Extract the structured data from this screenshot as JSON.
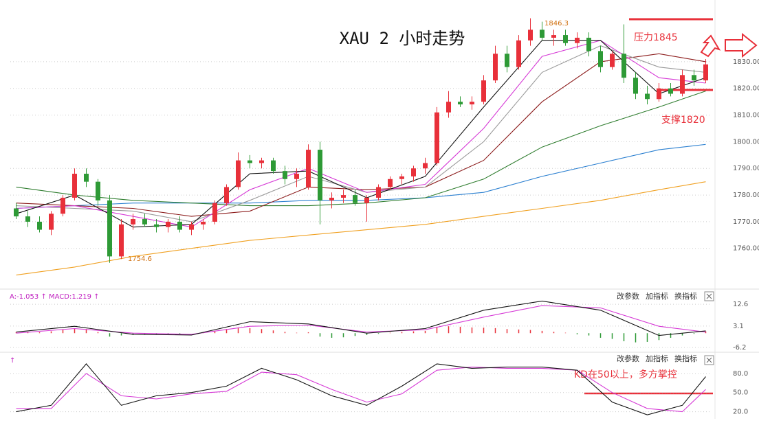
{
  "title": "XAU 2 小时走势",
  "chart_data": [
    {
      "type": "candlestick",
      "ylim": [
        1745,
        1848
      ],
      "yticks": [
        {
          "value": 1760,
          "label": "1760.00"
        },
        {
          "value": 1770,
          "label": "1770.00"
        },
        {
          "value": 1780,
          "label": "1780.00"
        },
        {
          "value": 1790,
          "label": "1790.00"
        },
        {
          "value": 1800,
          "label": "1800.00"
        },
        {
          "value": 1810,
          "label": "1810.00"
        },
        {
          "value": 1820,
          "label": "1820.00"
        },
        {
          "value": 1830,
          "label": "1830.00"
        }
      ],
      "grid": true,
      "up_color": "#e8303a",
      "down_color": "#2e9a36",
      "ohlc": [
        [
          1775,
          1777,
          1771,
          1772
        ],
        [
          1772,
          1774,
          1768,
          1770
        ],
        [
          1770,
          1772,
          1766,
          1767
        ],
        [
          1767,
          1774,
          1765,
          1773
        ],
        [
          1773,
          1780,
          1772,
          1779
        ],
        [
          1779,
          1790,
          1778,
          1788
        ],
        [
          1788,
          1790,
          1783,
          1785
        ],
        [
          1785,
          1786,
          1776,
          1778
        ],
        [
          1778,
          1780,
          1754.6,
          1757
        ],
        [
          1757,
          1771,
          1756,
          1769
        ],
        [
          1769,
          1773,
          1767,
          1771
        ],
        [
          1771,
          1773,
          1768,
          1769
        ],
        [
          1769,
          1771,
          1766,
          1768
        ],
        [
          1768,
          1771,
          1766,
          1770
        ],
        [
          1770,
          1772,
          1766,
          1767
        ],
        [
          1767,
          1770,
          1765,
          1769
        ],
        [
          1769,
          1771,
          1767,
          1770
        ],
        [
          1770,
          1778,
          1769,
          1777
        ],
        [
          1777,
          1784,
          1776,
          1783
        ],
        [
          1783,
          1796,
          1782,
          1793
        ],
        [
          1793,
          1795,
          1790,
          1792
        ],
        [
          1792,
          1794,
          1790,
          1793
        ],
        [
          1793,
          1794,
          1788,
          1789
        ],
        [
          1789,
          1791,
          1784,
          1786
        ],
        [
          1786,
          1790,
          1783,
          1788
        ],
        [
          1783,
          1799,
          1782,
          1797
        ],
        [
          1797,
          1800,
          1769,
          1778
        ],
        [
          1778,
          1781,
          1775,
          1779
        ],
        [
          1779,
          1782,
          1777,
          1780
        ],
        [
          1780,
          1782,
          1776,
          1777
        ],
        [
          1777,
          1780,
          1770,
          1779
        ],
        [
          1779,
          1784,
          1778,
          1783
        ],
        [
          1783,
          1787,
          1782,
          1786
        ],
        [
          1786,
          1788,
          1784,
          1787
        ],
        [
          1787,
          1791,
          1785,
          1790
        ],
        [
          1790,
          1794,
          1788,
          1792
        ],
        [
          1792,
          1813,
          1791,
          1811
        ],
        [
          1811,
          1819,
          1809,
          1815
        ],
        [
          1815,
          1817,
          1813,
          1814
        ],
        [
          1814,
          1817,
          1812,
          1815
        ],
        [
          1815,
          1825,
          1814,
          1823
        ],
        [
          1823,
          1836,
          1822,
          1833
        ],
        [
          1833,
          1836,
          1826,
          1828
        ],
        [
          1828,
          1840,
          1827,
          1838
        ],
        [
          1838,
          1846.3,
          1836,
          1842
        ],
        [
          1842,
          1845,
          1838,
          1839
        ],
        [
          1839,
          1842,
          1836,
          1840
        ],
        [
          1840,
          1842,
          1836,
          1837
        ],
        [
          1837,
          1841,
          1835,
          1839
        ],
        [
          1839,
          1841,
          1832,
          1834
        ],
        [
          1834,
          1836,
          1826,
          1828
        ],
        [
          1828,
          1834,
          1827,
          1833
        ],
        [
          1833,
          1844,
          1822,
          1824
        ],
        [
          1824,
          1826,
          1816,
          1818
        ],
        [
          1818,
          1821,
          1814,
          1816
        ],
        [
          1816,
          1822,
          1815,
          1820
        ],
        [
          1820,
          1822,
          1817,
          1818
        ],
        [
          1818,
          1827,
          1817,
          1825
        ],
        [
          1825,
          1827,
          1821,
          1823
        ],
        [
          1823,
          1831,
          1822,
          1829
        ]
      ],
      "series": [
        {
          "color": "#f0a020",
          "x": [
            0,
            5,
            10,
            15,
            20,
            25,
            30,
            35,
            40,
            45,
            50,
            55,
            59
          ],
          "values": [
            1750,
            1753,
            1757,
            1760,
            1763,
            1765,
            1767,
            1769,
            1772,
            1775,
            1778,
            1782,
            1785
          ]
        },
        {
          "color": "#2a7fd0",
          "x": [
            0,
            5,
            10,
            15,
            20,
            25,
            30,
            35,
            40,
            45,
            50,
            55,
            59
          ],
          "values": [
            1775,
            1776,
            1777,
            1777,
            1777,
            1778,
            1778,
            1779,
            1781,
            1787,
            1792,
            1797,
            1799
          ]
        },
        {
          "color": "#2f7d2f",
          "x": [
            0,
            5,
            10,
            15,
            20,
            25,
            30,
            35,
            40,
            45,
            50,
            55,
            59
          ],
          "values": [
            1783,
            1780,
            1778,
            1777,
            1776,
            1776,
            1777,
            1779,
            1786,
            1798,
            1806,
            1813,
            1819
          ]
        },
        {
          "color": "#8b1a1a",
          "x": [
            0,
            5,
            10,
            15,
            20,
            25,
            30,
            35,
            40,
            45,
            50,
            55,
            59
          ],
          "values": [
            1777,
            1776,
            1775,
            1772,
            1774,
            1783,
            1782,
            1783,
            1793,
            1815,
            1830,
            1833,
            1830
          ]
        },
        {
          "color": "#999999",
          "x": [
            0,
            5,
            10,
            15,
            20,
            25,
            30,
            35,
            40,
            45,
            50,
            55,
            59
          ],
          "values": [
            1776,
            1775,
            1774,
            1770,
            1778,
            1787,
            1781,
            1783,
            1800,
            1826,
            1836,
            1828,
            1826
          ]
        },
        {
          "color": "#d63ad6",
          "x": [
            0,
            5,
            10,
            15,
            20,
            25,
            30,
            35,
            40,
            45,
            50,
            55,
            59
          ],
          "values": [
            1775,
            1776,
            1772,
            1768,
            1782,
            1790,
            1781,
            1784,
            1805,
            1832,
            1838,
            1824,
            1822
          ]
        },
        {
          "color": "#111111",
          "x": [
            0,
            5,
            10,
            15,
            20,
            25,
            30,
            35,
            40,
            45,
            50,
            55,
            59
          ],
          "values": [
            1773,
            1780,
            1768,
            1769,
            1788,
            1789,
            1779,
            1787,
            1813,
            1838,
            1838,
            1818,
            1824
          ]
        }
      ],
      "annotations": [
        "1846.3",
        "1754.6",
        "压力1845",
        "支撑1820"
      ]
    },
    {
      "type": "macd",
      "header": "A:-1.053 ↑ MACD:1.219 ↑",
      "toolbar": [
        "改参数",
        "加指标",
        "换指标"
      ],
      "ylim": [
        -8,
        18
      ],
      "yticks": [
        12.6,
        3.1,
        -6.2
      ],
      "up_color": "#e8303a",
      "down_color": "#2e9a36",
      "histogram": [
        0.5,
        0.6,
        0.4,
        0.8,
        1.5,
        2,
        1.8,
        0.5,
        -1.5,
        -1,
        -0.8,
        -0.6,
        -0.5,
        -0.3,
        -0.2,
        0,
        0.3,
        1,
        1.8,
        2.5,
        2.2,
        1.8,
        1.2,
        0.6,
        0.2,
        0.4,
        -1.5,
        -2,
        -1.8,
        -1.2,
        -0.8,
        -0.3,
        0.2,
        0.5,
        0.8,
        1,
        2.5,
        3,
        2.8,
        2.5,
        2.4,
        2.2,
        1.8,
        1.6,
        1.4,
        1,
        0.6,
        0.2,
        -0.5,
        -1,
        -2,
        -2.5,
        -3.5,
        -4,
        -3.8,
        -3,
        -2,
        -1,
        -0.3,
        0.8
      ],
      "series": [
        {
          "color": "#d63ad6",
          "x": [
            0,
            5,
            10,
            15,
            20,
            25,
            30,
            35,
            40,
            45,
            50,
            55,
            59
          ],
          "values": [
            0,
            2,
            0,
            -0.5,
            3,
            3.5,
            0.5,
            1.5,
            7,
            12,
            11,
            3,
            0.5
          ]
        },
        {
          "color": "#111111",
          "x": [
            0,
            5,
            10,
            15,
            20,
            25,
            30,
            35,
            40,
            45,
            50,
            55,
            59
          ],
          "values": [
            0.5,
            3,
            -0.5,
            -0.8,
            5,
            4,
            0,
            2,
            10,
            14,
            10,
            -1,
            1
          ]
        }
      ]
    },
    {
      "type": "line",
      "header": "↑",
      "toolbar": [
        "改参数",
        "加指标",
        "换指标"
      ],
      "ylim": [
        12,
        110
      ],
      "yticks": [
        {
          "value": 80,
          "label": "80.0"
        },
        {
          "value": 50,
          "label": "50.0"
        },
        {
          "value": 20,
          "label": "20.0"
        }
      ],
      "series": [
        {
          "color": "#d63ad6",
          "x": [
            0,
            3,
            6,
            9,
            12,
            15,
            18,
            21,
            24,
            27,
            30,
            33,
            36,
            39,
            42,
            45,
            48,
            51,
            54,
            57,
            59
          ],
          "values": [
            25,
            25,
            80,
            45,
            40,
            48,
            52,
            82,
            78,
            55,
            35,
            48,
            85,
            90,
            88,
            88,
            85,
            50,
            25,
            20,
            55
          ]
        },
        {
          "color": "#111111",
          "x": [
            0,
            3,
            6,
            9,
            12,
            15,
            18,
            21,
            24,
            27,
            30,
            33,
            36,
            39,
            42,
            45,
            48,
            51,
            54,
            57,
            59
          ],
          "values": [
            20,
            30,
            95,
            30,
            45,
            50,
            60,
            88,
            70,
            45,
            30,
            60,
            95,
            88,
            90,
            90,
            85,
            35,
            15,
            30,
            75
          ]
        }
      ],
      "annotation": "KD在50以上，多方掌控"
    }
  ]
}
